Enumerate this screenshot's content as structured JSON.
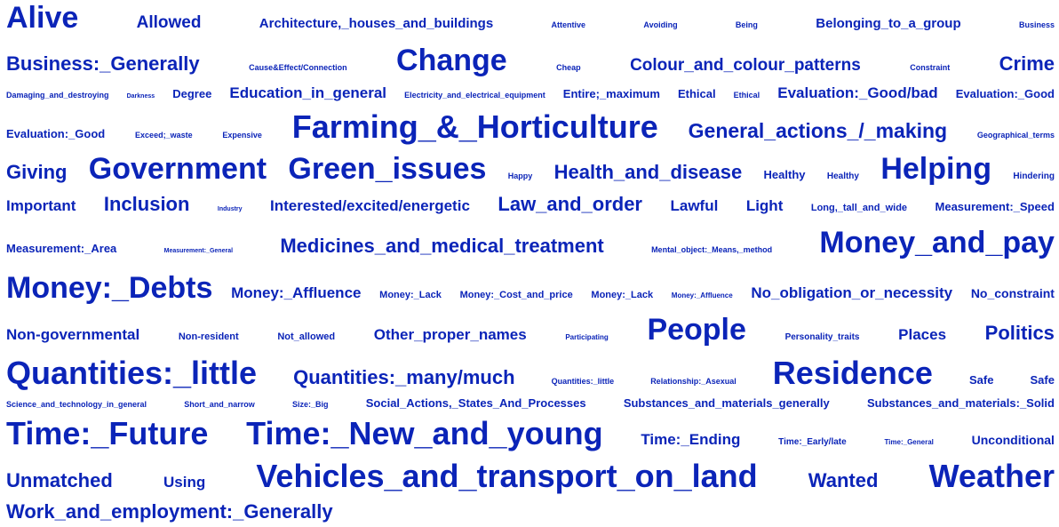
{
  "cloud": {
    "color": "#0b24b8",
    "lines": [
      [
        "Alive",
        "Allowed",
        "Architecture,_houses_and_buildings",
        "Attentive",
        "Avoiding",
        "Being",
        "Belonging_to_a_group",
        "Business"
      ],
      [
        "Business:_Generally",
        "Cause&Effect/Connection",
        "Change",
        "Cheap",
        "Colour_and_colour_patterns",
        "Constraint",
        "Crime"
      ],
      [
        "Damaging_and_destroying",
        "Darkness",
        "Degree",
        "Education_in_general",
        "Electricity_and_electrical_equipment",
        "Entire;_maximum",
        "Ethical",
        "Ethical",
        "Evaluation:_Good/bad",
        "Evaluation:_Good"
      ],
      [
        "Evaluation:_Good",
        "Exceed;_waste",
        "Expensive",
        "Farming_&_Horticulture",
        "General_actions_/_making",
        "Geographical_terms"
      ],
      [
        "Giving",
        "Government",
        "Green_issues",
        "Happy",
        "Health_and_disease",
        "Healthy",
        "Healthy",
        "Helping",
        "Hindering"
      ],
      [
        "Important",
        "Inclusion",
        "Industry",
        "Interested/excited/energetic",
        "Law_and_order",
        "Lawful",
        "Light",
        "Long,_tall_and_wide",
        "Measurement:_Speed"
      ],
      [
        "Measurement:_Area",
        "Measurement:_General",
        "Medicines_and_medical_treatment",
        "Mental_object:_Means,_method",
        "Money_and_pay"
      ],
      [
        "Money:_Debts",
        "Money:_Affluence",
        "Money:_Lack",
        "Money:_Cost_and_price",
        "Money:_Lack",
        "Money:_Affluence",
        "No_obligation_or_necessity",
        "No_constraint"
      ],
      [
        "Non-governmental",
        "Non-resident",
        "Not_allowed",
        "Other_proper_names",
        "Participating",
        "People",
        "Personality_traits",
        "Places",
        "Politics"
      ],
      [
        "Quantities:_little",
        "Quantities:_many/much",
        "Quantities:_little",
        "Relationship:_Asexual",
        "Residence",
        "Safe",
        "Safe"
      ],
      [
        "Science_and_technology_in_general",
        "Short_and_narrow",
        "Size:_Big",
        "Social_Actions,_States_And_Processes",
        "Substances_and_materials_generally",
        "Substances_and_materials:_Solid"
      ],
      [
        "Time:_Future",
        "Time:_New_and_young",
        "Time:_Ending",
        "Time:_Early/late",
        "Time:_General",
        "Unconditional"
      ],
      [
        "Unmatched",
        "Using",
        "Vehicles_and_transport_on_land",
        "Wanted",
        "Weather"
      ],
      [
        "Work_and_employment:_Generally"
      ]
    ]
  }
}
